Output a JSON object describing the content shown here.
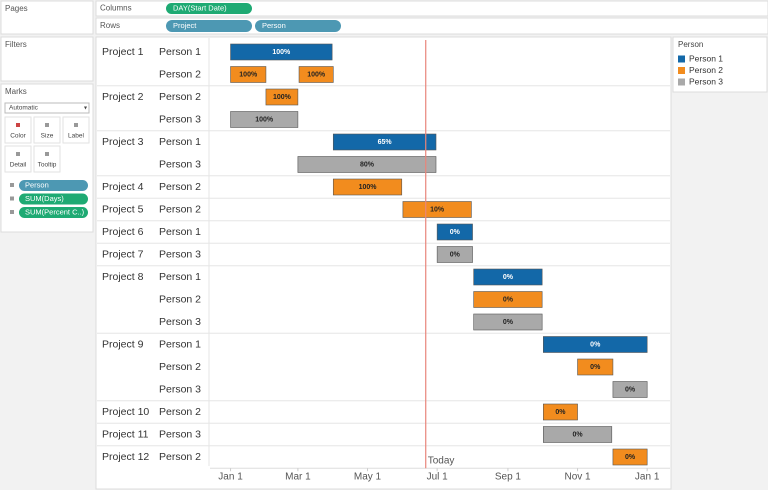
{
  "shelves": {
    "pages": "Pages",
    "columns": "Columns",
    "rows": "Rows",
    "column_pills": [
      "DAY(Start Date)"
    ],
    "row_pills": [
      "Project",
      "Person"
    ]
  },
  "filters": "Filters",
  "marks": {
    "title": "Marks",
    "mark_type": "Automatic",
    "buttons": [
      "Color",
      "Size",
      "Label",
      "Detail",
      "Tooltip"
    ],
    "pills": [
      "Person",
      "SUM(Days)",
      "SUM(Percent C..)"
    ]
  },
  "chart_data": {
    "type": "gantt",
    "xlim": [
      -18,
      385
    ],
    "xticks": [
      {
        "value": 0,
        "label": "Jan 1"
      },
      {
        "value": 59,
        "label": "Mar 1"
      },
      {
        "value": 120,
        "label": "May 1"
      },
      {
        "value": 181,
        "label": "Jul 1"
      },
      {
        "value": 243,
        "label": "Sep 1"
      },
      {
        "value": 304,
        "label": "Nov 1"
      },
      {
        "value": 365,
        "label": "Jan 1"
      }
    ],
    "today": {
      "value": 171,
      "label": "Today",
      "color": "#e8857a"
    },
    "legend_title": "Person",
    "series": [
      {
        "name": "Person 1",
        "color": "#1368a8",
        "label_color": "#ffffff"
      },
      {
        "name": "Person 2",
        "color": "#f28c1e",
        "label_color": "#222222"
      },
      {
        "name": "Person 3",
        "color": "#a9a9a9",
        "label_color": "#222222"
      }
    ],
    "rows": [
      {
        "project": "Project 1",
        "person": "Person 1",
        "bars": [
          {
            "start": 0,
            "days": 89,
            "label": "100%"
          }
        ]
      },
      {
        "project": null,
        "person": "Person 2",
        "bars": [
          {
            "start": 0,
            "days": 31,
            "label": "100%"
          },
          {
            "start": 60,
            "days": 30,
            "label": "100%"
          }
        ]
      },
      {
        "project": "Project 2",
        "person": "Person 2",
        "bars": [
          {
            "start": 31,
            "days": 28,
            "label": "100%"
          }
        ]
      },
      {
        "project": null,
        "person": "Person 3",
        "bars": [
          {
            "start": 0,
            "days": 59,
            "label": "100%"
          }
        ]
      },
      {
        "project": "Project 3",
        "person": "Person 1",
        "bars": [
          {
            "start": 90,
            "days": 90,
            "label": "65%"
          }
        ]
      },
      {
        "project": null,
        "person": "Person 3",
        "bars": [
          {
            "start": 59,
            "days": 121,
            "label": "80%"
          }
        ]
      },
      {
        "project": "Project 4",
        "person": "Person 2",
        "bars": [
          {
            "start": 90,
            "days": 60,
            "label": "100%"
          }
        ]
      },
      {
        "project": "Project 5",
        "person": "Person 2",
        "bars": [
          {
            "start": 151,
            "days": 60,
            "label": "10%"
          }
        ]
      },
      {
        "project": "Project 6",
        "person": "Person 1",
        "bars": [
          {
            "start": 181,
            "days": 31,
            "label": "0%"
          }
        ]
      },
      {
        "project": "Project 7",
        "person": "Person 3",
        "bars": [
          {
            "start": 181,
            "days": 31,
            "label": "0%"
          }
        ]
      },
      {
        "project": "Project 8",
        "person": "Person 1",
        "bars": [
          {
            "start": 213,
            "days": 60,
            "label": "0%"
          }
        ]
      },
      {
        "project": null,
        "person": "Person 2",
        "bars": [
          {
            "start": 213,
            "days": 60,
            "label": "0%"
          }
        ]
      },
      {
        "project": null,
        "person": "Person 3",
        "bars": [
          {
            "start": 213,
            "days": 60,
            "label": "0%"
          }
        ]
      },
      {
        "project": "Project 9",
        "person": "Person 1",
        "bars": [
          {
            "start": 274,
            "days": 91,
            "label": "0%"
          }
        ]
      },
      {
        "project": null,
        "person": "Person 2",
        "bars": [
          {
            "start": 304,
            "days": 31,
            "label": "0%"
          }
        ]
      },
      {
        "project": null,
        "person": "Person 3",
        "bars": [
          {
            "start": 335,
            "days": 30,
            "label": "0%"
          }
        ]
      },
      {
        "project": "Project 10",
        "person": "Person 2",
        "bars": [
          {
            "start": 274,
            "days": 30,
            "label": "0%"
          }
        ]
      },
      {
        "project": "Project 11",
        "person": "Person 3",
        "bars": [
          {
            "start": 274,
            "days": 60,
            "label": "0%"
          }
        ]
      },
      {
        "project": "Project 12",
        "person": "Person 2",
        "bars": [
          {
            "start": 335,
            "days": 30,
            "label": "0%"
          }
        ]
      }
    ]
  }
}
